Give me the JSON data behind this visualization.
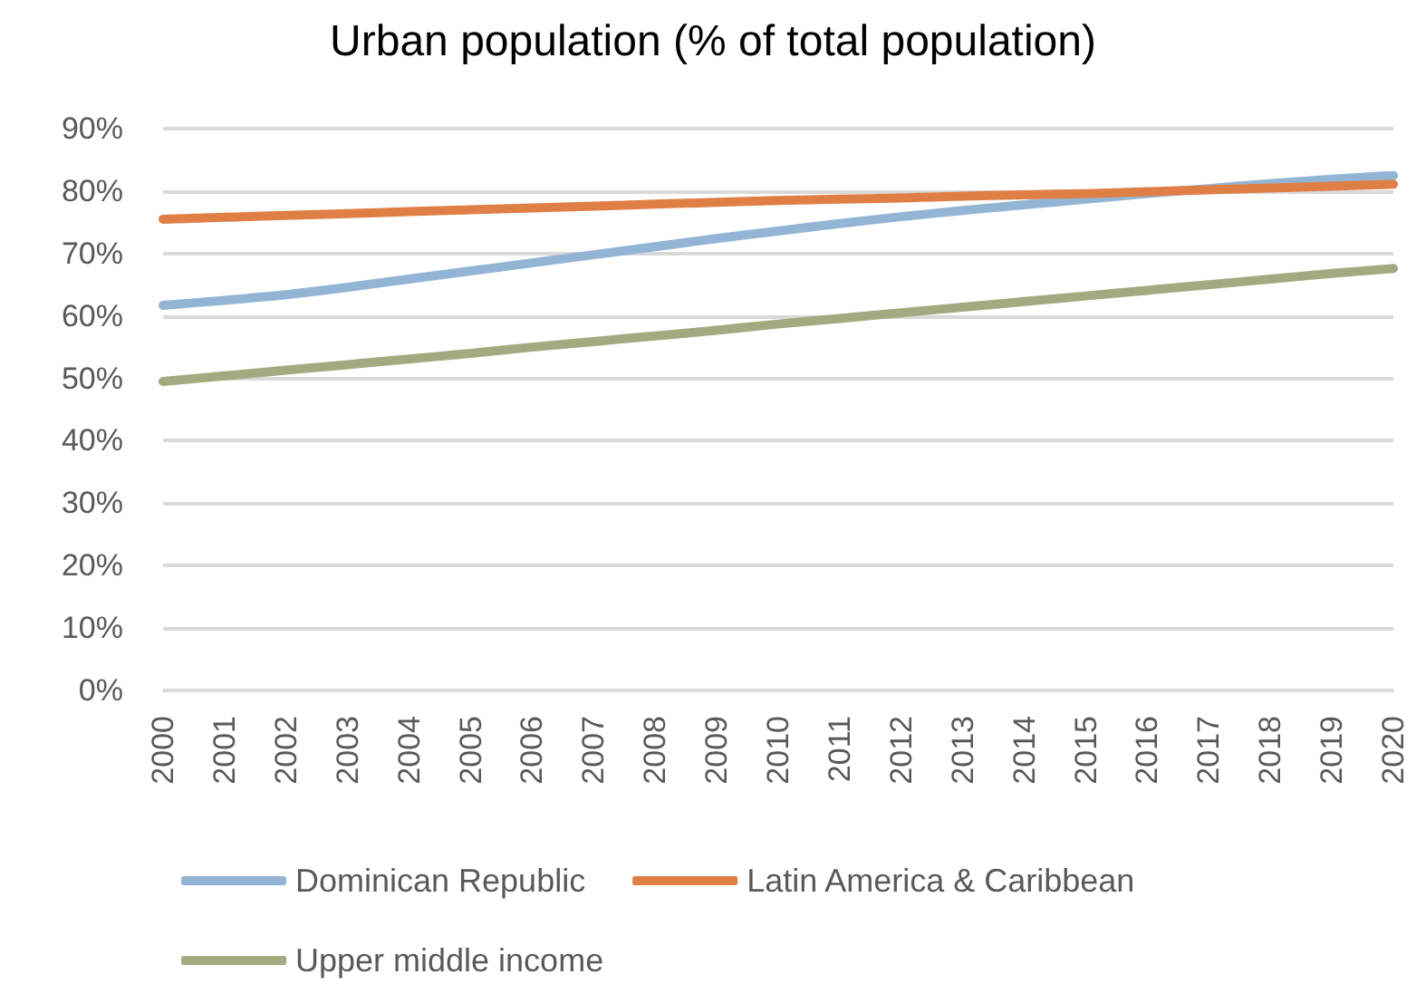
{
  "chart_data": {
    "type": "line",
    "title": "Urban population (% of total population)",
    "categories": [
      "2000",
      "2001",
      "2002",
      "2003",
      "2004",
      "2005",
      "2006",
      "2007",
      "2008",
      "2009",
      "2010",
      "2011",
      "2012",
      "2013",
      "2014",
      "2015",
      "2016",
      "2017",
      "2018",
      "2019",
      "2020"
    ],
    "series": [
      {
        "name": "Dominican Republic",
        "color": "#93b5d5",
        "values": [
          61.7,
          62.5,
          63.4,
          64.6,
          65.9,
          67.2,
          68.5,
          69.8,
          71.1,
          72.4,
          73.6,
          74.8,
          75.9,
          76.9,
          77.8,
          78.7,
          79.6,
          80.4,
          81.2,
          81.9,
          82.5
        ]
      },
      {
        "name": "Latin America & Caribbean",
        "color": "#e07f45",
        "values": [
          75.5,
          75.8,
          76.1,
          76.4,
          76.7,
          77.0,
          77.3,
          77.6,
          77.9,
          78.2,
          78.5,
          78.7,
          78.9,
          79.2,
          79.4,
          79.6,
          79.9,
          80.2,
          80.5,
          80.8,
          81.1
        ]
      },
      {
        "name": "Upper middle income",
        "color": "#a2ab7f",
        "values": [
          49.5,
          50.4,
          51.3,
          52.2,
          53.1,
          54.0,
          55.0,
          55.9,
          56.8,
          57.7,
          58.7,
          59.6,
          60.5,
          61.4,
          62.3,
          63.2,
          64.1,
          65.0,
          65.9,
          66.8,
          67.6
        ]
      }
    ],
    "ylim": [
      0,
      90
    ],
    "yticks": [
      {
        "value": 0,
        "label": "0%"
      },
      {
        "value": 10,
        "label": "10%"
      },
      {
        "value": 20,
        "label": "20%"
      },
      {
        "value": 30,
        "label": "30%"
      },
      {
        "value": 40,
        "label": "40%"
      },
      {
        "value": 50,
        "label": "50%"
      },
      {
        "value": 60,
        "label": "60%"
      },
      {
        "value": 70,
        "label": "70%"
      },
      {
        "value": 80,
        "label": "80%"
      },
      {
        "value": 90,
        "label": "90%"
      }
    ],
    "grid": "y",
    "legend": "bottom",
    "marker": "none",
    "line_style": "solid"
  }
}
